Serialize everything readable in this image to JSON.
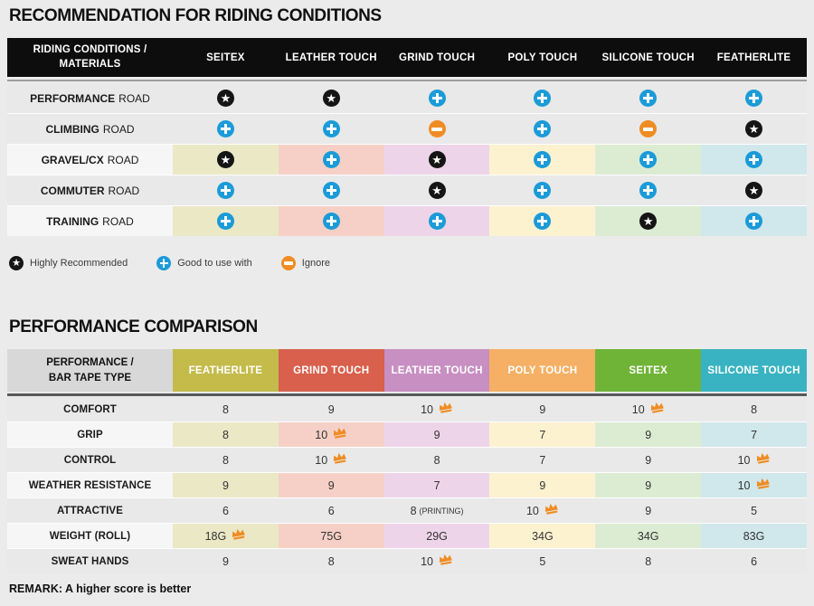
{
  "colors": {
    "page_bg": "#ebebeb",
    "table1_header_bg": "#0d0d0d",
    "plus_blue": "#1b9bd8",
    "minus_orange": "#ef8c23",
    "star_black": "#151515",
    "crown_orange": "#ef8c23",
    "plain_row_bg": "#e9e9e9",
    "colored_row_label_bg": "#f6f6f6",
    "table1_header_sep": "#9e9e9e",
    "table2_header_sep": "#58595b",
    "table2_corner_bg": "#d8d8d8"
  },
  "section1": {
    "title": "RECOMMENDATION FOR RIDING CONDITIONS",
    "corner_line1": "RIDING CONDITIONS /",
    "corner_line2": "MATERIALS",
    "columns": [
      "SEITEX",
      "LEATHER TOUCH",
      "GRIND TOUCH",
      "POLY TOUCH",
      "SILICONE TOUCH",
      "FEATHERLITE"
    ],
    "cell_colors": [
      "#ebe8c6",
      "#f6d0c6",
      "#eed4e9",
      "#fdf2d0",
      "#dcecd3",
      "#d0e7eb"
    ],
    "rows": [
      {
        "label": "PERFORMANCE",
        "label_suffix": "ROAD",
        "colored": false,
        "icons": [
          "star",
          "star",
          "plus",
          "plus",
          "plus",
          "plus"
        ]
      },
      {
        "label": "CLIMBING",
        "label_suffix": "ROAD",
        "colored": false,
        "icons": [
          "plus",
          "plus",
          "minus",
          "plus",
          "minus",
          "star"
        ]
      },
      {
        "label": "GRAVEL/CX",
        "label_suffix": "ROAD",
        "colored": true,
        "icons": [
          "star",
          "plus",
          "star",
          "plus",
          "plus",
          "plus"
        ]
      },
      {
        "label": "COMMUTER",
        "label_suffix": "ROAD",
        "colored": false,
        "icons": [
          "plus",
          "plus",
          "star",
          "plus",
          "plus",
          "star"
        ]
      },
      {
        "label": "TRAINING",
        "label_suffix": "ROAD",
        "colored": true,
        "icons": [
          "plus",
          "plus",
          "plus",
          "plus",
          "star",
          "plus"
        ]
      }
    ],
    "legend": [
      {
        "icon": "star",
        "label": "Highly Recommended"
      },
      {
        "icon": "plus",
        "label": "Good to use with"
      },
      {
        "icon": "minus",
        "label": "Ignore"
      }
    ]
  },
  "section2": {
    "title": "PERFORMANCE COMPARISON",
    "corner_line1": "PERFORMANCE /",
    "corner_line2": "BAR TAPE TYPE",
    "columns": [
      {
        "label": "FEATHERLITE",
        "header_color": "#c4bb4b",
        "cell_color": "#ebe8c6"
      },
      {
        "label": "GRIND TOUCH",
        "header_color": "#d8604c",
        "cell_color": "#f6d0c6"
      },
      {
        "label": "LEATHER TOUCH",
        "header_color": "#c78fc2",
        "cell_color": "#eed4e9"
      },
      {
        "label": "POLY TOUCH",
        "header_color": "#f5b065",
        "cell_color": "#fdf2d0"
      },
      {
        "label": "SEITEX",
        "header_color": "#6fb437",
        "cell_color": "#dcecd3"
      },
      {
        "label": "SILICONE TOUCH",
        "header_color": "#39b3c1",
        "cell_color": "#d0e7eb"
      }
    ],
    "rows": [
      {
        "label": "COMFORT",
        "colored": false,
        "cells": [
          {
            "value": "8"
          },
          {
            "value": "9"
          },
          {
            "value": "10",
            "crown": true
          },
          {
            "value": "9"
          },
          {
            "value": "10",
            "crown": true
          },
          {
            "value": "8"
          }
        ]
      },
      {
        "label": "GRIP",
        "colored": true,
        "cells": [
          {
            "value": "8"
          },
          {
            "value": "10",
            "crown": true
          },
          {
            "value": "9"
          },
          {
            "value": "7"
          },
          {
            "value": "9"
          },
          {
            "value": "7"
          }
        ]
      },
      {
        "label": "CONTROL",
        "colored": false,
        "cells": [
          {
            "value": "8"
          },
          {
            "value": "10",
            "crown": true
          },
          {
            "value": "8"
          },
          {
            "value": "7"
          },
          {
            "value": "9"
          },
          {
            "value": "10",
            "crown": true
          }
        ]
      },
      {
        "label": "WEATHER RESISTANCE",
        "colored": true,
        "cells": [
          {
            "value": "9"
          },
          {
            "value": "9"
          },
          {
            "value": "7"
          },
          {
            "value": "9"
          },
          {
            "value": "9"
          },
          {
            "value": "10",
            "crown": true
          }
        ]
      },
      {
        "label": "ATTRACTIVE",
        "colored": false,
        "cells": [
          {
            "value": "6"
          },
          {
            "value": "6"
          },
          {
            "value": "8",
            "suffix": "(PRINTING)"
          },
          {
            "value": "10",
            "crown": true
          },
          {
            "value": "9"
          },
          {
            "value": "5"
          }
        ]
      },
      {
        "label": "WEIGHT (ROLL)",
        "colored": true,
        "cells": [
          {
            "value": "18G",
            "crown": true
          },
          {
            "value": "75G"
          },
          {
            "value": "29G"
          },
          {
            "value": "34G"
          },
          {
            "value": "34G"
          },
          {
            "value": "83G"
          }
        ]
      },
      {
        "label": "SWEAT HANDS",
        "colored": false,
        "cells": [
          {
            "value": "9"
          },
          {
            "value": "8"
          },
          {
            "value": "10",
            "crown": true
          },
          {
            "value": "5"
          },
          {
            "value": "8"
          },
          {
            "value": "6"
          }
        ]
      }
    ],
    "remark": "REMARK: A higher score is better"
  },
  "chart_data": [
    {
      "type": "table",
      "title": "RECOMMENDATION FOR RIDING CONDITIONS",
      "columns": [
        "SEITEX",
        "LEATHER TOUCH",
        "GRIND TOUCH",
        "POLY TOUCH",
        "SILICONE TOUCH",
        "FEATHERLITE"
      ],
      "rows": [
        {
          "label": "PERFORMANCE ROAD",
          "values": [
            "highly-recommended",
            "highly-recommended",
            "good-to-use-with",
            "good-to-use-with",
            "good-to-use-with",
            "good-to-use-with"
          ]
        },
        {
          "label": "CLIMBING ROAD",
          "values": [
            "good-to-use-with",
            "good-to-use-with",
            "ignore",
            "good-to-use-with",
            "ignore",
            "highly-recommended"
          ]
        },
        {
          "label": "GRAVEL/CX ROAD",
          "values": [
            "highly-recommended",
            "good-to-use-with",
            "highly-recommended",
            "good-to-use-with",
            "good-to-use-with",
            "good-to-use-with"
          ]
        },
        {
          "label": "COMMUTER ROAD",
          "values": [
            "good-to-use-with",
            "good-to-use-with",
            "highly-recommended",
            "good-to-use-with",
            "good-to-use-with",
            "highly-recommended"
          ]
        },
        {
          "label": "TRAINING ROAD",
          "values": [
            "good-to-use-with",
            "good-to-use-with",
            "good-to-use-with",
            "good-to-use-with",
            "highly-recommended",
            "good-to-use-with"
          ]
        }
      ],
      "legend": [
        "Highly Recommended",
        "Good to use with",
        "Ignore"
      ]
    },
    {
      "type": "table",
      "title": "PERFORMANCE COMPARISON",
      "columns": [
        "FEATHERLITE",
        "GRIND TOUCH",
        "LEATHER TOUCH",
        "POLY TOUCH",
        "SEITEX",
        "SILICONE TOUCH"
      ],
      "rows": [
        {
          "label": "COMFORT",
          "values": [
            "8",
            "9",
            "10 (best)",
            "9",
            "10 (best)",
            "8"
          ]
        },
        {
          "label": "GRIP",
          "values": [
            "8",
            "10 (best)",
            "9",
            "7",
            "9",
            "7"
          ]
        },
        {
          "label": "CONTROL",
          "values": [
            "8",
            "10 (best)",
            "8",
            "7",
            "9",
            "10 (best)"
          ]
        },
        {
          "label": "WEATHER RESISTANCE",
          "values": [
            "9",
            "9",
            "7",
            "9",
            "9",
            "10 (best)"
          ]
        },
        {
          "label": "ATTRACTIVE",
          "values": [
            "6",
            "6",
            "8 (PRINTING)",
            "10 (best)",
            "9",
            "5"
          ]
        },
        {
          "label": "WEIGHT (ROLL)",
          "values": [
            "18G (best)",
            "75G",
            "29G",
            "34G",
            "34G",
            "83G"
          ]
        },
        {
          "label": "SWEAT HANDS",
          "values": [
            "9",
            "8",
            "10 (best)",
            "5",
            "8",
            "6"
          ]
        }
      ],
      "note": "REMARK: A higher score is better"
    }
  ]
}
